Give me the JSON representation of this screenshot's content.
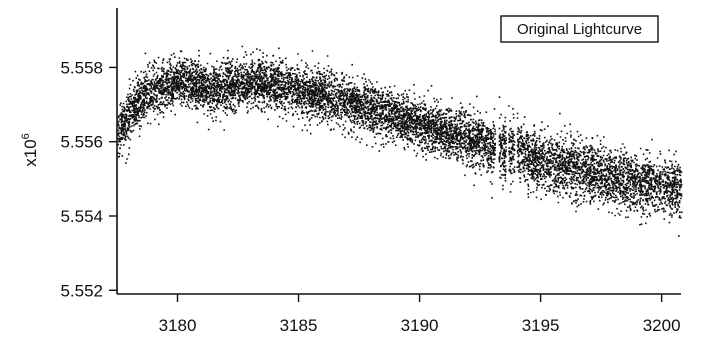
{
  "chart_data": {
    "type": "scatter",
    "title": "",
    "xlabel": "",
    "ylabel": "",
    "y_multiplier_label": "x10",
    "y_multiplier_exponent": "6",
    "legend": {
      "entries": [
        "Original Lightcurve"
      ],
      "placement": "top-right",
      "boxed": true
    },
    "xlim": [
      3177.5,
      3200.8
    ],
    "ylim": [
      5.5519,
      5.5596
    ],
    "x_ticks": [
      3180,
      3185,
      3190,
      3195,
      3200
    ],
    "x_tick_labels": [
      "3180",
      "3185",
      "3190",
      "3195",
      "3200"
    ],
    "y_ticks": [
      5.552,
      5.554,
      5.556,
      5.558
    ],
    "y_tick_labels": [
      "5.552",
      "5.554",
      "5.556",
      "5.558"
    ],
    "grid": false,
    "marker_color": "#111111",
    "series": [
      {
        "trend": {
          "x": [
            3177.5,
            3178.0,
            3178.5,
            3179.0,
            3179.5,
            3180.0,
            3180.5,
            3181.0,
            3181.5,
            3182.0,
            3182.5,
            3183.0,
            3183.5,
            3184.0,
            3184.5,
            3185.0,
            3185.5,
            3186.0,
            3186.5,
            3187.0,
            3187.5,
            3188.0,
            3188.5,
            3189.0,
            3189.5,
            3190.0,
            3190.5,
            3191.0,
            3191.5,
            3192.0,
            3192.5,
            3193.0,
            3193.5,
            3194.0,
            3194.5,
            3195.0,
            3195.5,
            3196.0,
            3196.5,
            3197.0,
            3197.5,
            3198.0,
            3198.5,
            3199.0,
            3199.5,
            3200.0,
            3200.5
          ],
          "y": [
            5.5562,
            5.5568,
            5.5572,
            5.5574,
            5.5575,
            5.5576,
            5.5576,
            5.5575,
            5.5574,
            5.5575,
            5.5576,
            5.5576,
            5.5576,
            5.5575,
            5.5575,
            5.5574,
            5.5573,
            5.5573,
            5.5572,
            5.5571,
            5.557,
            5.5569,
            5.5568,
            5.5567,
            5.5566,
            5.5565,
            5.5564,
            5.5563,
            5.5562,
            5.5561,
            5.556,
            5.5559,
            5.5557,
            5.5558,
            5.5556,
            5.5555,
            5.5554,
            5.5553,
            5.5553,
            5.5552,
            5.5551,
            5.555,
            5.555,
            5.5549,
            5.5549,
            5.5548,
            5.5548
          ],
          "spread": [
            0.0007,
            0.0008,
            0.0008,
            0.0008,
            0.0008,
            0.0008,
            0.0008,
            0.0008,
            0.0008,
            0.0008,
            0.0008,
            0.0008,
            0.0008,
            0.0008,
            0.0008,
            0.0008,
            0.0008,
            0.0008,
            0.0008,
            0.0008,
            0.0008,
            0.0008,
            0.0008,
            0.0008,
            0.0008,
            0.0008,
            0.0008,
            0.0008,
            0.0008,
            0.0008,
            0.0008,
            0.0008,
            0.001,
            0.001,
            0.0009,
            0.0009,
            0.0009,
            0.0009,
            0.0009,
            0.0009,
            0.0009,
            0.0009,
            0.0009,
            0.0009,
            0.0009,
            0.0009,
            0.0009
          ]
        },
        "gaps": [
          [
            3193.1,
            3193.25
          ],
          [
            3193.55,
            3193.65
          ],
          [
            3193.9,
            3194.0
          ]
        ],
        "n_points": 9000
      }
    ]
  }
}
